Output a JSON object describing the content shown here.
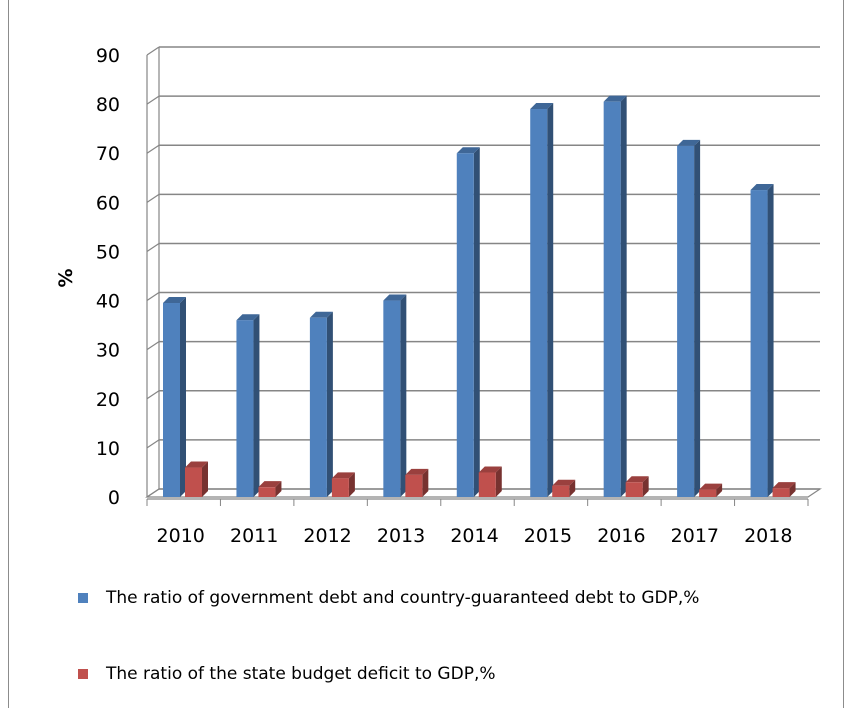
{
  "chart_data": {
    "type": "bar",
    "categories": [
      "2010",
      "2011",
      "2012",
      "2013",
      "2014",
      "2015",
      "2016",
      "2017",
      "2018"
    ],
    "series": [
      {
        "name": "The ratio of government debt and country-guaranteed debt to GDP,%",
        "values": [
          39.5,
          36,
          36.5,
          40,
          70,
          79,
          80.5,
          71.5,
          62.5
        ],
        "color": "#4F81BD"
      },
      {
        "name": "The ratio of the state budget deficit to GDP,%",
        "values": [
          6,
          2,
          3.8,
          4.5,
          5,
          2.3,
          3,
          1.5,
          1.8
        ],
        "color": "#C0504D"
      }
    ],
    "ylabel": "%",
    "ylim": [
      0,
      90
    ],
    "yticks": [
      "0",
      "10",
      "20",
      "30",
      "40",
      "50",
      "60",
      "70",
      "80",
      "90"
    ],
    "grid": true,
    "style": "3d-clustered-column",
    "legend_position": "bottom"
  }
}
